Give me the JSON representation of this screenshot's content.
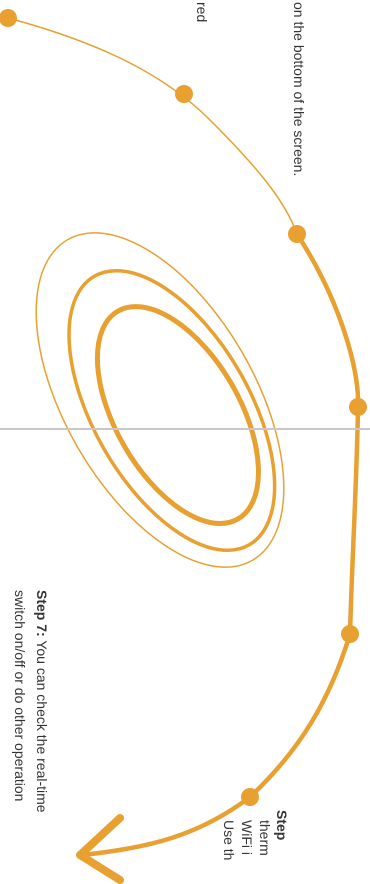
{
  "colors": {
    "accent": "#e8a030",
    "text": "#333333",
    "divider": "#c8c8c8"
  },
  "text_fragments": {
    "screen_bottom": "on the bottom of the screen.",
    "red": "red",
    "step7_label": "Step 7:",
    "step7_line1": " You can check the real-time",
    "step7_line2": "switch on/off or do other operation",
    "step_partial_label": "Step",
    "therm": "therm",
    "wifi": "WiFi i",
    "use": "Use th"
  }
}
